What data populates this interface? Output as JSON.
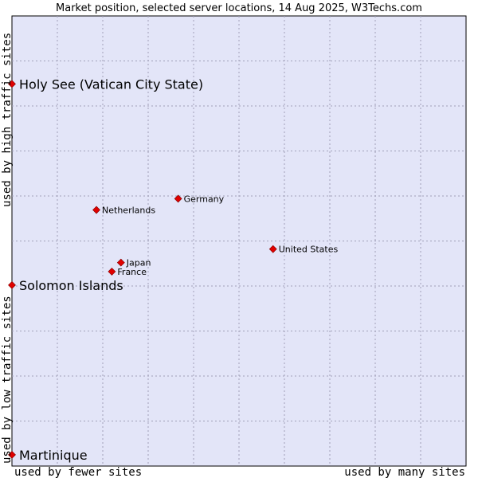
{
  "chart_data": {
    "type": "scatter",
    "title": "Market position, selected server locations, 14 Aug 2025, W3Techs.com",
    "xlabel_left": "used by fewer sites",
    "xlabel_right": "used by many sites",
    "ylabel_top": "used by high traffic sites",
    "ylabel_bottom": "used by low traffic sites",
    "xlim": [
      0,
      100
    ],
    "ylim": [
      0,
      100
    ],
    "grid": true,
    "colors": {
      "plot_bg": "#e3e5f8",
      "frame": "#000000",
      "point": "#e00000",
      "point_edge": "#800000"
    },
    "points": [
      {
        "label": "Holy See (Vatican City State)",
        "x": 0,
        "y": 84.9,
        "emphasis": true
      },
      {
        "label": "Solomon Islands",
        "x": 0,
        "y": 40.2,
        "emphasis": true
      },
      {
        "label": "Martinique",
        "x": 0,
        "y": 2.5,
        "emphasis": true
      },
      {
        "label": "Germany",
        "x": 36.6,
        "y": 59.4,
        "emphasis": false
      },
      {
        "label": "Netherlands",
        "x": 18.6,
        "y": 56.9,
        "emphasis": false
      },
      {
        "label": "United States",
        "x": 57.5,
        "y": 48.2,
        "emphasis": false
      },
      {
        "label": "Japan",
        "x": 24.0,
        "y": 45.2,
        "emphasis": false
      },
      {
        "label": "France",
        "x": 22.0,
        "y": 43.2,
        "emphasis": false
      }
    ]
  }
}
